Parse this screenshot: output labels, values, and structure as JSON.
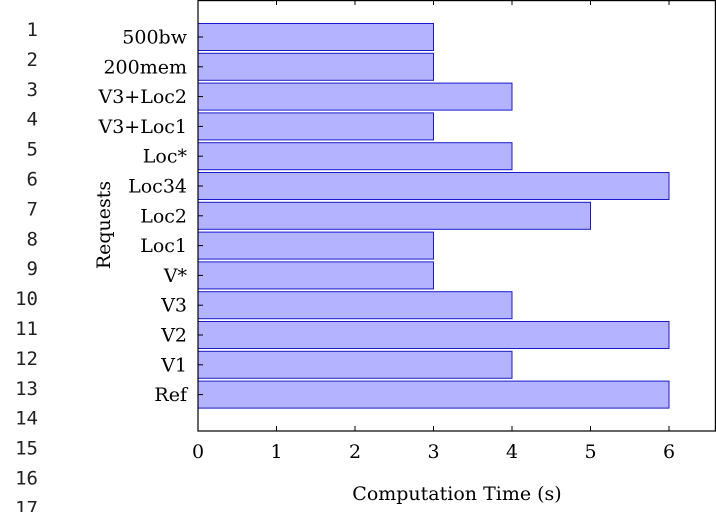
{
  "line_numbers": [
    "1",
    "2",
    "3",
    "4",
    "5",
    "6",
    "7",
    "8",
    "9",
    "10",
    "11",
    "12",
    "13",
    "14",
    "15",
    "16",
    "17"
  ],
  "chart_data": {
    "type": "bar",
    "orientation": "horizontal",
    "categories": [
      "500bw",
      "200mem",
      "V3+Loc2",
      "V3+Loc1",
      "Loc*",
      "Loc34",
      "Loc2",
      "Loc1",
      "V*",
      "V3",
      "V2",
      "V1",
      "Ref"
    ],
    "values": [
      3,
      3,
      4,
      3,
      4,
      6,
      5,
      3,
      3,
      4,
      6,
      4,
      6
    ],
    "xlabel": "Computation Time (s)",
    "ylabel": "Requests",
    "xlim": [
      0,
      6.55
    ],
    "xticks": [
      "0",
      "1",
      "2",
      "3",
      "4",
      "5",
      "6"
    ],
    "grid": false,
    "colors": {
      "bar_fill": "#b3b3ff",
      "bar_stroke": "#1a1acc",
      "axis": "#000000"
    }
  }
}
